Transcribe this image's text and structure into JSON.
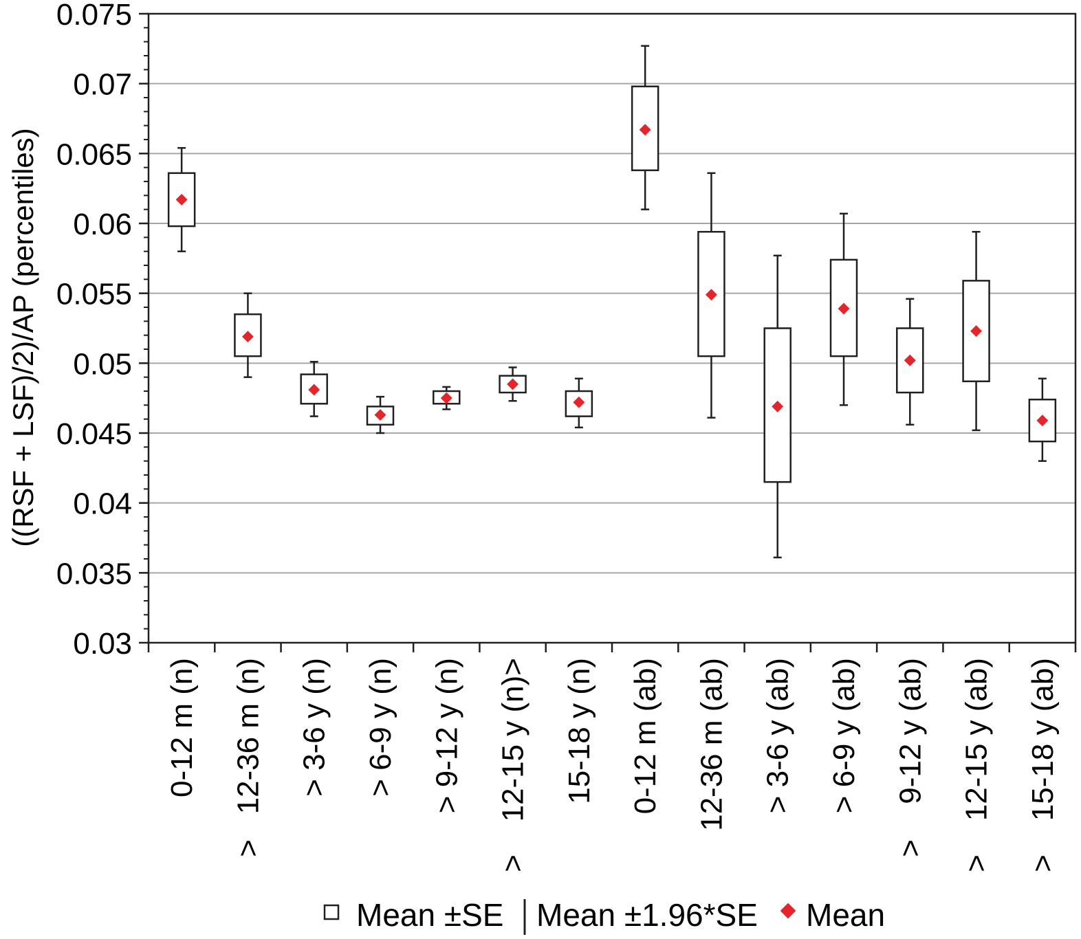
{
  "chart_data": {
    "type": "box",
    "title": "",
    "xlabel": "",
    "ylabel": "((RSF + LSF)/2)/AP (percentiles)",
    "ylim": [
      0.03,
      0.075
    ],
    "yticks": [
      "0.03",
      "0.035",
      "0.04",
      "0.045",
      "0.05",
      "0.055",
      "0.06",
      "0.065",
      "0.07",
      "0.075"
    ],
    "grid": true,
    "categories": [
      {
        "line1": "0-12 m (n)",
        "line2": ""
      },
      {
        "line1": "12-36 m (n)",
        "line2": ">"
      },
      {
        "line1": "> 3-6 y (n)",
        "line2": ""
      },
      {
        "line1": "> 6-9 y (n)",
        "line2": ""
      },
      {
        "line1": "> 9-12 y (n)",
        "line2": ""
      },
      {
        "line1": "12-15 y (n)>",
        "line2": ">"
      },
      {
        "line1": "15-18 y (n)",
        "line2": ""
      },
      {
        "line1": "0-12 m (ab)",
        "line2": ""
      },
      {
        "line1": "12-36 m (ab)",
        "line2": ""
      },
      {
        "line1": "> 3-6 y (ab)",
        "line2": ""
      },
      {
        "line1": "> 6-9 y (ab)",
        "line2": ""
      },
      {
        "line1": "9-12 y (ab)",
        "line2": ">"
      },
      {
        "line1": "12-15 y (ab)",
        "line2": ">"
      },
      {
        "line1": "15-18 y (ab)",
        "line2": ">"
      }
    ],
    "series": [
      {
        "name": "Mean",
        "values": [
          0.0617,
          0.0519,
          0.0481,
          0.0463,
          0.0475,
          0.0485,
          0.0472,
          0.0667,
          0.0549,
          0.0469,
          0.0539,
          0.0502,
          0.0523,
          0.0459
        ]
      },
      {
        "name": "Mean ±SE (low)",
        "values": [
          0.0598,
          0.0505,
          0.0471,
          0.0456,
          0.0471,
          0.0479,
          0.0462,
          0.0638,
          0.0505,
          0.0415,
          0.0505,
          0.0479,
          0.0487,
          0.0444
        ]
      },
      {
        "name": "Mean ±SE (high)",
        "values": [
          0.0636,
          0.0535,
          0.0492,
          0.0469,
          0.048,
          0.0491,
          0.048,
          0.0698,
          0.0594,
          0.0525,
          0.0574,
          0.0525,
          0.0559,
          0.0474
        ]
      },
      {
        "name": "Mean ±1.96*SE (low)",
        "values": [
          0.058,
          0.049,
          0.0462,
          0.045,
          0.0467,
          0.0473,
          0.0454,
          0.061,
          0.0461,
          0.0361,
          0.047,
          0.0456,
          0.0452,
          0.043
        ]
      },
      {
        "name": "Mean ±1.96*SE (high)",
        "values": [
          0.0654,
          0.055,
          0.0501,
          0.0476,
          0.0483,
          0.0497,
          0.0489,
          0.0727,
          0.0636,
          0.0577,
          0.0607,
          0.0546,
          0.0594,
          0.0489
        ]
      }
    ],
    "colors": {
      "mean_marker": "#e3262b",
      "box": "#231f20",
      "grid": "#a6a6a6"
    }
  },
  "legend": {
    "box_label": "Mean ±SE",
    "whisker_label": "Mean ±1.96*SE",
    "mean_label": "Mean"
  }
}
